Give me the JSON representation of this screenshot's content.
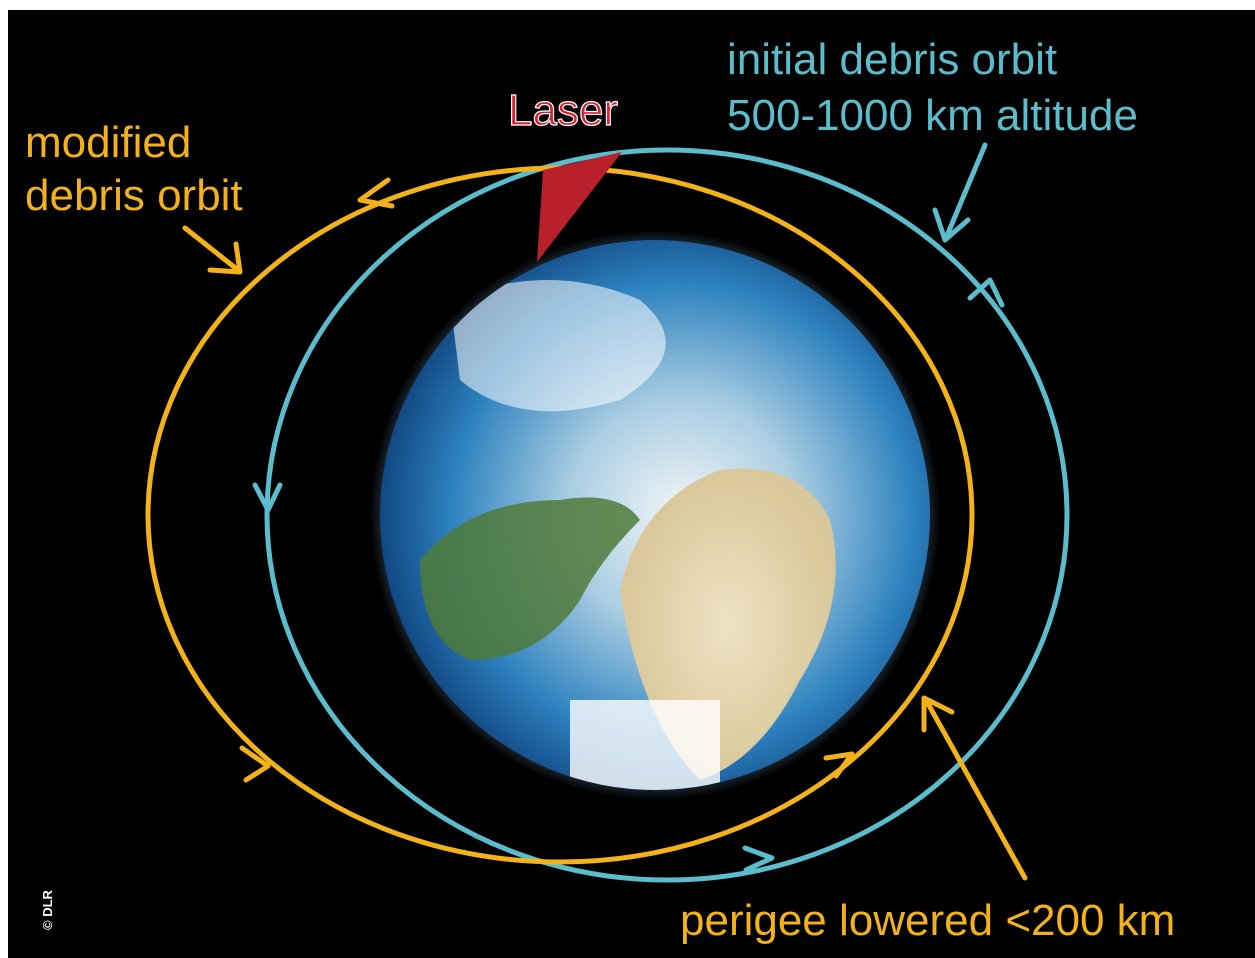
{
  "labels": {
    "modified_orbit": [
      "modified",
      "debris orbit"
    ],
    "initial_orbit": [
      "initial debris orbit",
      "500-1000 km altitude"
    ],
    "laser": "Laser",
    "perigee": "perigee lowered <200 km",
    "credit": "© DLR"
  }
}
